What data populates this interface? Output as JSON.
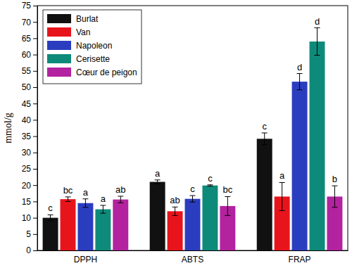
{
  "chart_data": {
    "type": "bar",
    "y_label": "mmol/g",
    "categories": [
      "DPPH",
      "ABTS",
      "FRAP"
    ],
    "series": [
      {
        "name": "Burlat",
        "color": "#111111",
        "values": [
          10.0,
          21.0,
          34.2
        ],
        "errors": [
          0.9,
          0.6,
          1.8
        ],
        "annotations": [
          "c",
          "a",
          "c"
        ]
      },
      {
        "name": "Van",
        "color": "#e8141c",
        "values": [
          15.7,
          12.0,
          16.5
        ],
        "errors": [
          0.7,
          1.3,
          4.3
        ],
        "annotations": [
          "bc",
          "ab",
          "a"
        ]
      },
      {
        "name": "Napoleon",
        "color": "#2b3dbf",
        "values": [
          14.5,
          15.8,
          51.7
        ],
        "errors": [
          1.3,
          1.0,
          2.5
        ],
        "annotations": [
          "a",
          "c",
          "d"
        ]
      },
      {
        "name": "Cerisette",
        "color": "#0e8a7a",
        "values": [
          12.6,
          19.9,
          64.0
        ],
        "errors": [
          1.2,
          0.2,
          4.2
        ],
        "annotations": [
          "a",
          "c",
          "d"
        ]
      },
      {
        "name": "Cœur de peigon",
        "color": "#b3229f",
        "values": [
          15.6,
          13.6,
          16.5
        ],
        "errors": [
          1.0,
          2.9,
          3.3
        ],
        "annotations": [
          "ab",
          "bc",
          "b"
        ]
      }
    ],
    "ylim": [
      0,
      75
    ],
    "yticks": [
      0,
      5,
      10,
      15,
      20,
      25,
      30,
      35,
      40,
      45,
      50,
      55,
      60,
      65,
      70,
      75
    ],
    "grid": false,
    "legend": "upper left"
  }
}
